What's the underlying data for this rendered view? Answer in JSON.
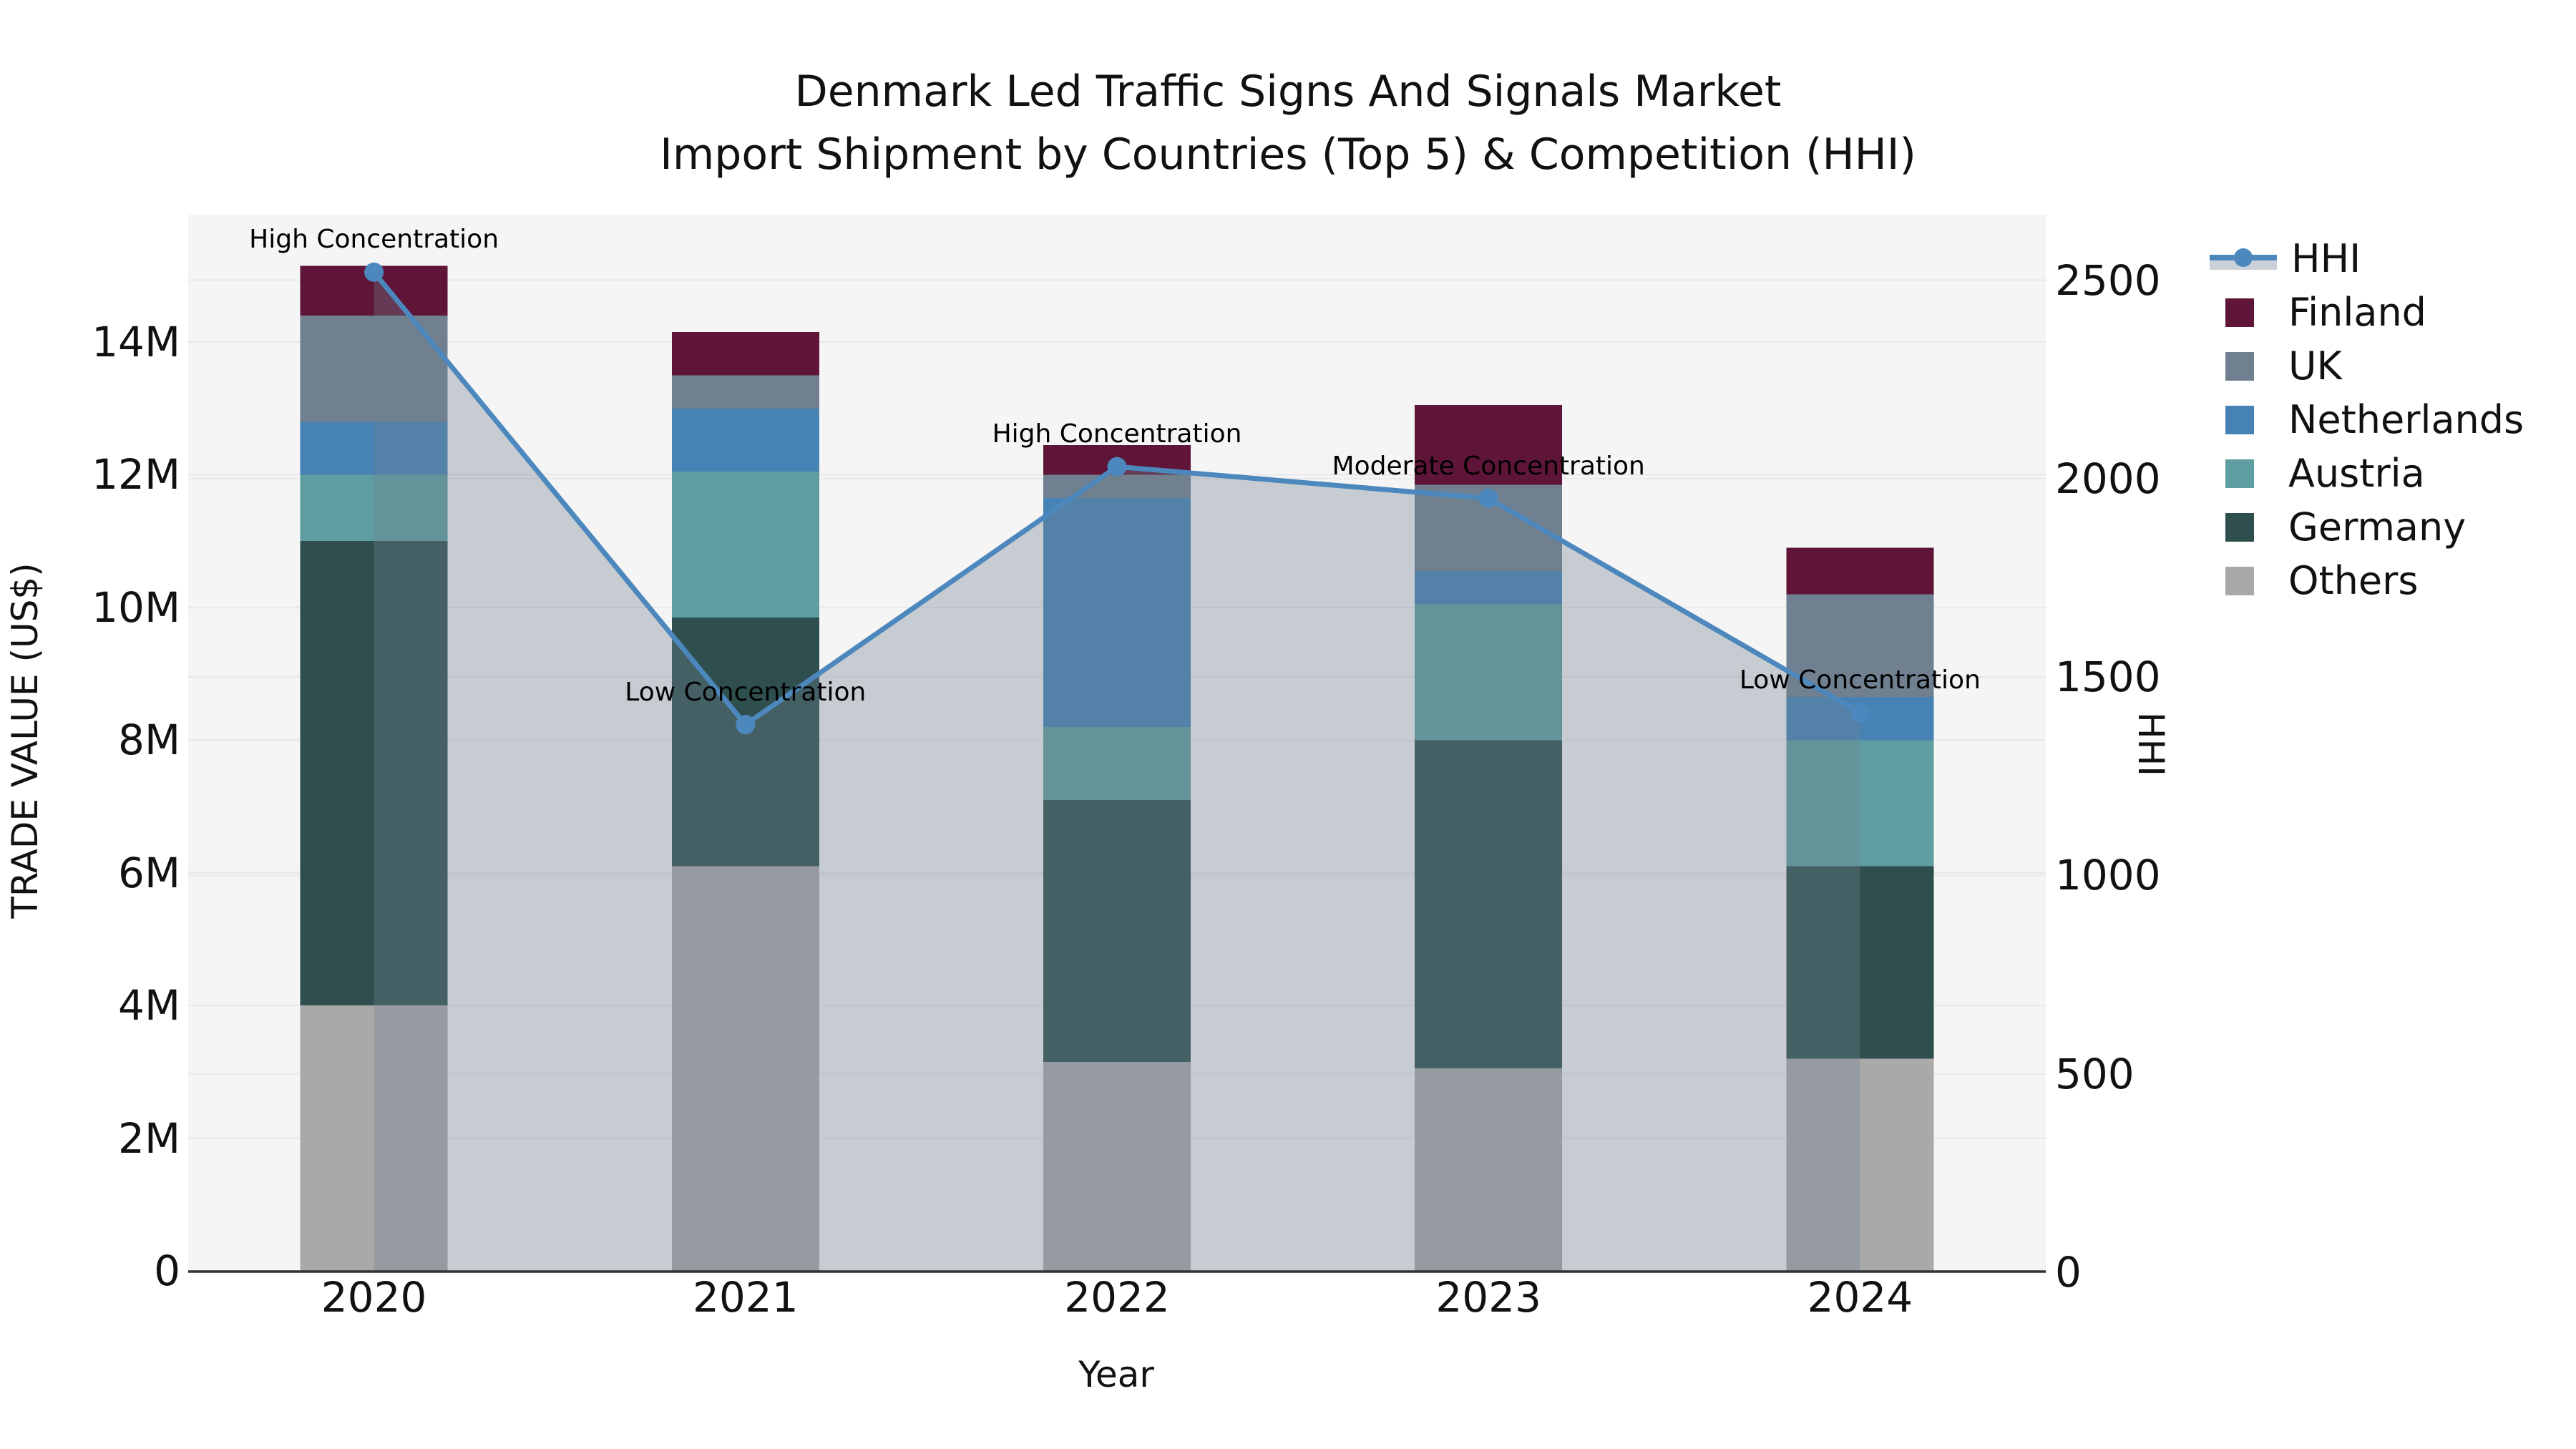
{
  "title": {
    "line1": "Denmark Led Traffic Signs And Signals Market",
    "line2": "Import Shipment by Countries (Top 5) & Competition (HHI)"
  },
  "axes": {
    "y_left": {
      "title": "TRADE VALUE (US$)",
      "ticks": [
        {
          "label": "0",
          "value": 0
        },
        {
          "label": "2M",
          "value": 2
        },
        {
          "label": "4M",
          "value": 4
        },
        {
          "label": "6M",
          "value": 6
        },
        {
          "label": "8M",
          "value": 8
        },
        {
          "label": "10M",
          "value": 10
        },
        {
          "label": "12M",
          "value": 12
        },
        {
          "label": "14M",
          "value": 14
        }
      ]
    },
    "y_right": {
      "title": "HHI",
      "ticks": [
        {
          "label": "0",
          "value": 0
        },
        {
          "label": "500",
          "value": 500
        },
        {
          "label": "1000",
          "value": 1000
        },
        {
          "label": "1500",
          "value": 1500
        },
        {
          "label": "2000",
          "value": 2000
        },
        {
          "label": "2500",
          "value": 2500
        }
      ]
    },
    "x": {
      "title": "Year",
      "ticks": [
        "2020",
        "2021",
        "2022",
        "2023",
        "2024"
      ]
    }
  },
  "legend": {
    "items": [
      {
        "key": "HHI",
        "label": "HHI",
        "type": "line"
      },
      {
        "key": "Finland",
        "label": "Finland",
        "type": "bar"
      },
      {
        "key": "UK",
        "label": "UK",
        "type": "bar"
      },
      {
        "key": "Netherlands",
        "label": "Netherlands",
        "type": "bar"
      },
      {
        "key": "Austria",
        "label": "Austria",
        "type": "bar"
      },
      {
        "key": "Germany",
        "label": "Germany",
        "type": "bar"
      },
      {
        "key": "Others",
        "label": "Others",
        "type": "bar"
      }
    ]
  },
  "annotations": [
    {
      "x": "2020",
      "text": "High Concentration"
    },
    {
      "x": "2021",
      "text": "Low Concentration"
    },
    {
      "x": "2022",
      "text": "High Concentration"
    },
    {
      "x": "2023",
      "text": "Moderate Concentration"
    },
    {
      "x": "2024",
      "text": "Low Concentration"
    }
  ],
  "colors": {
    "HHI": "#4C87BD",
    "Finland": "#5E1537",
    "UK": "#708090",
    "Netherlands": "#4682B4",
    "Austria": "#5F9EA0",
    "Germany": "#2F4F4F",
    "Others": "#A9A9A9",
    "area_fill": "rgba(112,128,144,0.35)",
    "legend_area_swatch": "#CBD1D8",
    "plot_bg": "#F5F5F5",
    "grid": "#E8E8E8",
    "axis_line": "#333333"
  },
  "chart_data": {
    "type": "combo-stacked-bar-line",
    "title": "Denmark Led Traffic Signs And Signals Market — Import Shipment by Countries (Top 5) & Competition (HHI)",
    "categories": [
      "2020",
      "2021",
      "2022",
      "2023",
      "2024"
    ],
    "bar_unit": "USD millions",
    "stack_order_bottom_to_top": [
      "Others",
      "Germany",
      "Austria",
      "Netherlands",
      "UK",
      "Finland"
    ],
    "series": [
      {
        "name": "Others",
        "type": "bar",
        "axis": "left",
        "values_usd_m": [
          4.0,
          6.1,
          3.15,
          3.05,
          3.2
        ]
      },
      {
        "name": "Germany",
        "type": "bar",
        "axis": "left",
        "values_usd_m": [
          7.0,
          3.75,
          3.95,
          4.95,
          2.9
        ]
      },
      {
        "name": "Austria",
        "type": "bar",
        "axis": "left",
        "values_usd_m": [
          1.0,
          2.2,
          1.1,
          2.05,
          1.9
        ]
      },
      {
        "name": "Netherlands",
        "type": "bar",
        "axis": "left",
        "values_usd_m": [
          0.8,
          0.95,
          3.45,
          0.5,
          0.65
        ]
      },
      {
        "name": "UK",
        "type": "bar",
        "axis": "left",
        "values_usd_m": [
          1.6,
          0.5,
          0.35,
          1.3,
          1.55
        ]
      },
      {
        "name": "Finland",
        "type": "bar",
        "axis": "left",
        "values_usd_m": [
          0.75,
          0.65,
          0.45,
          1.2,
          0.7
        ]
      },
      {
        "name": "HHI",
        "type": "line",
        "axis": "right",
        "values": [
          2520,
          1380,
          2030,
          1950,
          1410
        ]
      }
    ],
    "stack_totals_usd_m": [
      15.15,
      14.15,
      12.45,
      13.05,
      10.9
    ],
    "xlabel": "Year",
    "ylabel_left": "TRADE VALUE (US$)",
    "ylabel_right": "HHI",
    "ylim_left_usd_m": [
      0,
      15.9
    ],
    "ylim_right": [
      0,
      2665
    ],
    "grid": true,
    "legend_position": "right-outside",
    "area_fill_under_line": true
  }
}
